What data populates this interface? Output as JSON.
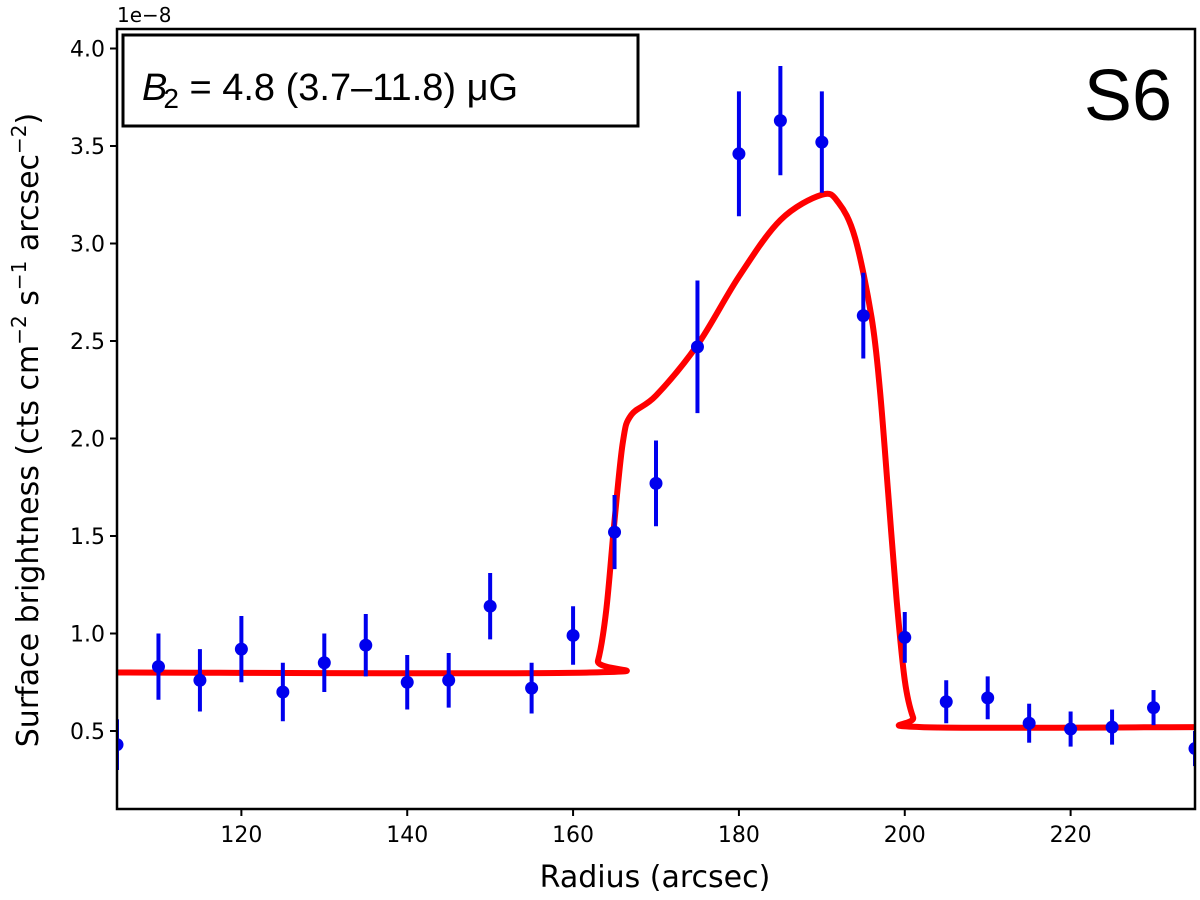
{
  "chart_data": {
    "type": "scatter",
    "xlabel": "Radius (arcsec)",
    "ylabel_main": "Surface brightness (cts cm",
    "ylabel_exp1": "−2",
    "ylabel_mid": " s",
    "ylabel_exp2": "−1",
    "ylabel_mid2": " arcsec",
    "ylabel_exp3": "−2",
    "ylabel_end": ")",
    "offset_text": "1e−8",
    "panel_label": "S6",
    "annotation": {
      "symbol": "B",
      "subscript": "2",
      "text": " = 4.8 (3.7–11.8)  μG"
    },
    "xlim": [
      105,
      235
    ],
    "ylim": [
      0.1,
      4.1
    ],
    "xticks": [
      120,
      140,
      160,
      180,
      200,
      220
    ],
    "yticks": [
      0.5,
      1.0,
      1.5,
      2.0,
      2.5,
      3.0,
      3.5,
      4.0
    ],
    "ytick_labels": [
      "0.5",
      "1.0",
      "1.5",
      "2.0",
      "2.5",
      "3.0",
      "3.5",
      "4.0"
    ],
    "colors": {
      "data": "#0000ee",
      "model": "#ff0000"
    },
    "series": [
      {
        "name": "",
        "kind": "data_with_errors",
        "x": [
          105,
          110,
          115,
          120,
          125,
          130,
          135,
          140,
          145,
          150,
          155,
          160,
          165,
          170,
          175,
          180,
          185,
          190,
          195,
          200,
          205,
          210,
          215,
          220,
          225,
          230,
          235
        ],
        "y": [
          0.43,
          0.83,
          0.76,
          0.92,
          0.7,
          0.85,
          0.94,
          0.75,
          0.76,
          1.14,
          0.72,
          0.99,
          1.52,
          1.77,
          2.47,
          3.46,
          3.63,
          3.52,
          2.63,
          0.98,
          0.65,
          0.67,
          0.54,
          0.51,
          0.52,
          0.62,
          0.41
        ],
        "yerr": [
          0.13,
          0.17,
          0.16,
          0.17,
          0.15,
          0.15,
          0.16,
          0.14,
          0.14,
          0.17,
          0.13,
          0.15,
          0.19,
          0.22,
          0.34,
          0.32,
          0.28,
          0.26,
          0.22,
          0.13,
          0.11,
          0.11,
          0.1,
          0.09,
          0.09,
          0.09,
          0.09
        ]
      },
      {
        "name": "",
        "kind": "model_curve",
        "x": [
          105,
          162,
          163,
          164,
          165,
          166,
          167,
          170,
          175,
          180,
          185,
          190,
          192,
          194,
          196,
          197,
          198,
          199,
          200,
          201,
          202,
          235
        ],
        "y": [
          0.8,
          0.8,
          0.86,
          1.12,
          1.58,
          1.98,
          2.12,
          2.22,
          2.48,
          2.83,
          3.12,
          3.25,
          3.21,
          3.03,
          2.62,
          2.25,
          1.72,
          1.18,
          0.76,
          0.57,
          0.52,
          0.52
        ]
      }
    ]
  }
}
